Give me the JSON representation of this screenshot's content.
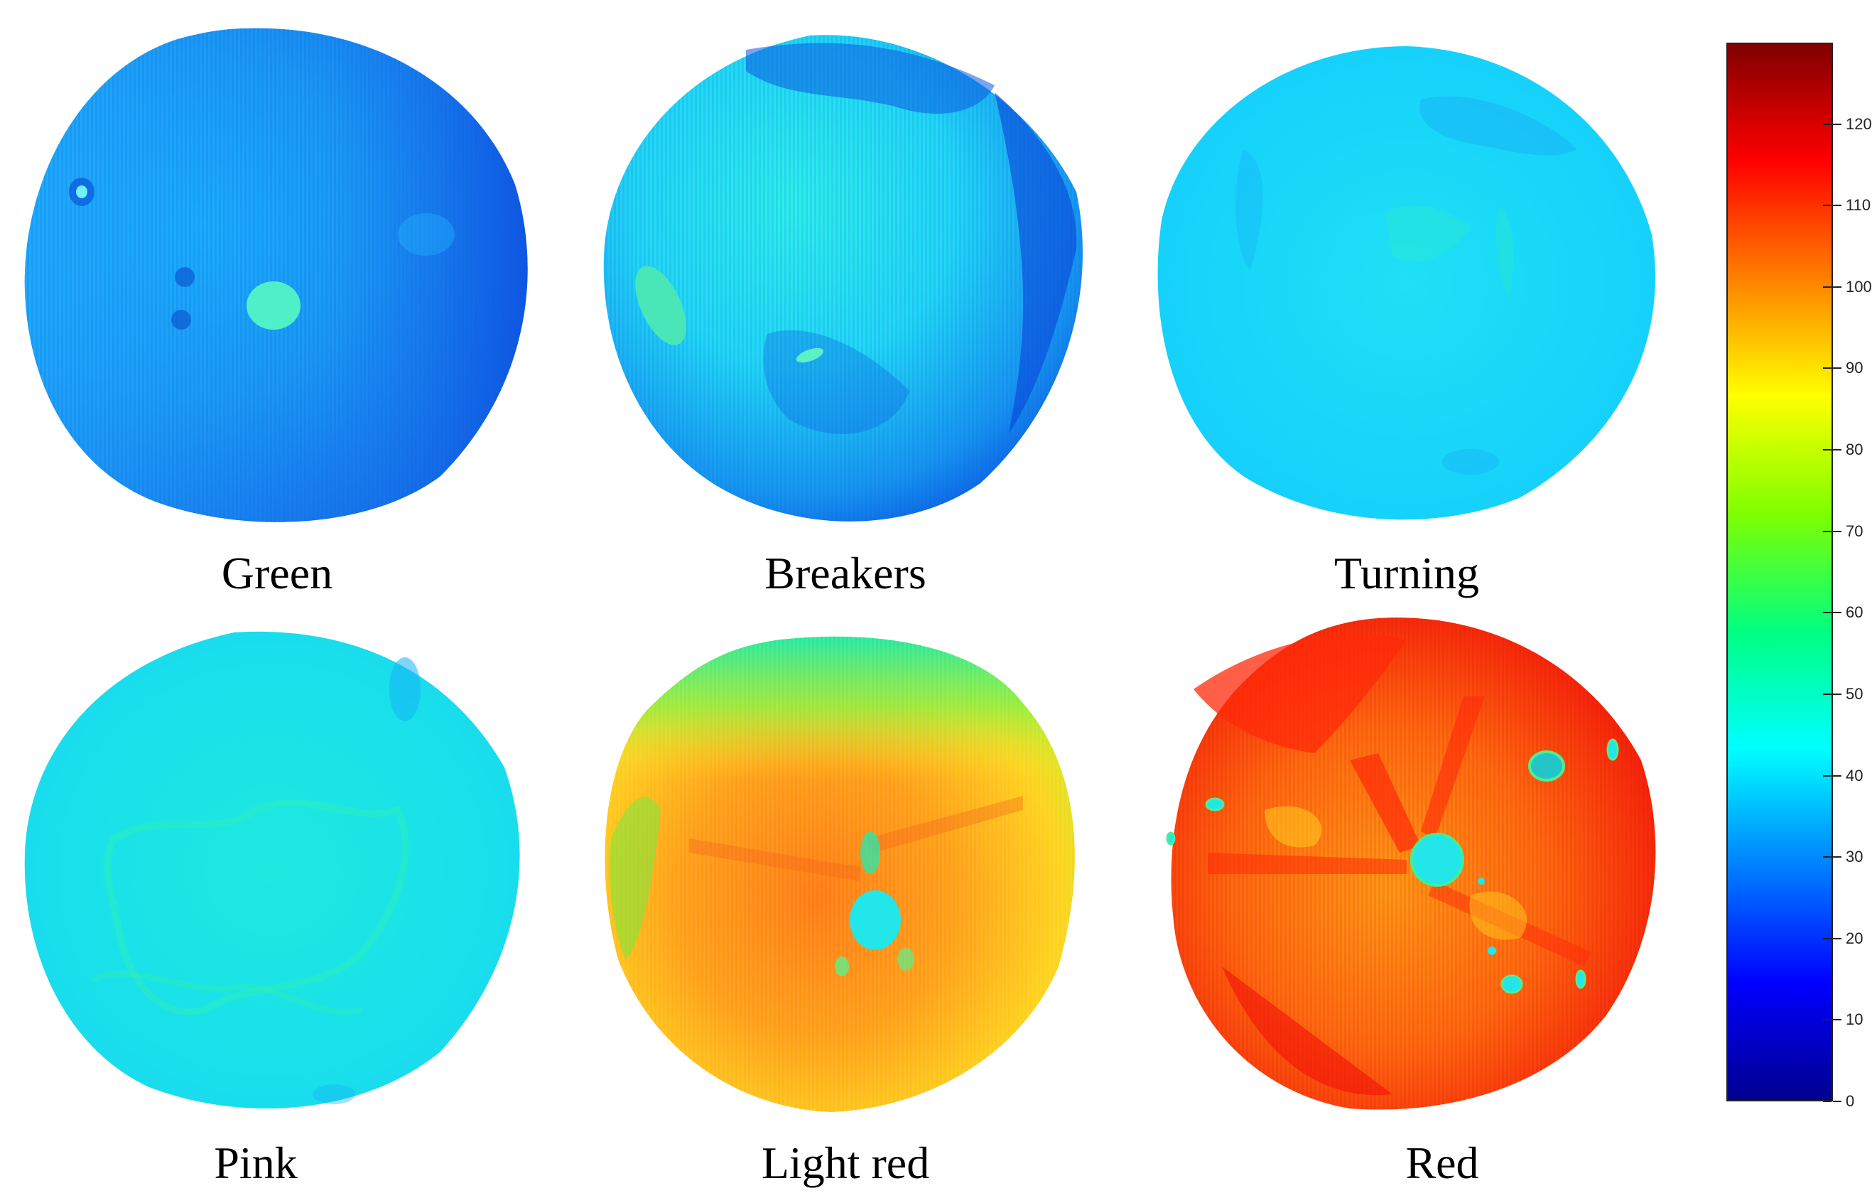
{
  "panels": [
    {
      "label": "Green"
    },
    {
      "label": "Breakers"
    },
    {
      "label": "Turning"
    },
    {
      "label": "Pink"
    },
    {
      "label": "Light red"
    },
    {
      "label": "Red"
    }
  ],
  "colorbar": {
    "min": 0,
    "max": 130,
    "ticks": [
      "0",
      "10",
      "20",
      "30",
      "40",
      "50",
      "60",
      "70",
      "80",
      "90",
      "100",
      "110",
      "120"
    ],
    "gradient_stops": [
      "#00008f",
      "#0000ff",
      "#0080ff",
      "#00ffff",
      "#00ff80",
      "#80ff00",
      "#ffff00",
      "#ff8000",
      "#ff0000",
      "#800000"
    ]
  }
}
